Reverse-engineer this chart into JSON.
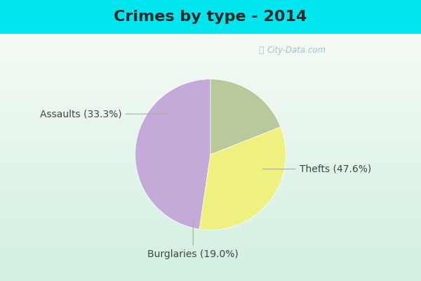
{
  "title": "Crimes by type - 2014",
  "slices": [
    {
      "label": "Thefts (47.6%)",
      "value": 47.6,
      "color": "#c4aad8"
    },
    {
      "label": "Assaults (33.3%)",
      "value": 33.3,
      "color": "#eef080"
    },
    {
      "label": "Burglaries (19.0%)",
      "value": 19.0,
      "color": "#b8c99a"
    }
  ],
  "bg_cyan": "#00e5ee",
  "bg_inner_top": "#cceedd",
  "bg_inner_bottom": "#e8f8f0",
  "title_fontsize": 16,
  "label_fontsize": 10,
  "startangle": 90,
  "watermark": "City-Data.com",
  "label_color": "#444444",
  "title_color": "#2a2a2a"
}
